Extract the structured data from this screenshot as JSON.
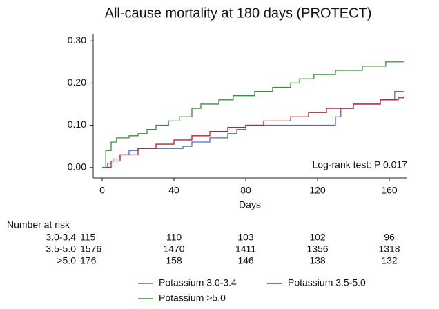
{
  "chart_data": {
    "type": "step",
    "title": "All-cause mortality at 180 days (PROTECT)",
    "x_label": "Days",
    "annotation": "Log-rank test: P 0.017",
    "xlim": [
      -5,
      170
    ],
    "ylim": [
      -0.025,
      0.315
    ],
    "xticks": [
      0,
      40,
      80,
      120,
      160
    ],
    "yticks": [
      {
        "value": 0.3,
        "label": "0.30"
      },
      {
        "value": 0.2,
        "label": "0.20"
      },
      {
        "value": 0.1,
        "label": "0.10"
      },
      {
        "value": 0,
        "label": "0.00"
      }
    ],
    "grid": false,
    "series": [
      {
        "name": "Potassium 3.0-3.4",
        "color": "#4a6fbf",
        "x": [
          0,
          3,
          6,
          10,
          15,
          20,
          45,
          50,
          60,
          70,
          75,
          80,
          130,
          133,
          140,
          155,
          163,
          168
        ],
        "values": [
          0,
          0.01,
          0.02,
          0.03,
          0.04,
          0.045,
          0.05,
          0.06,
          0.07,
          0.08,
          0.09,
          0.1,
          0.12,
          0.14,
          0.15,
          0.16,
          0.18,
          0.18
        ]
      },
      {
        "name": "Potassium 3.5-5.0",
        "color": "#b0243a",
        "x": [
          0,
          5,
          10,
          20,
          30,
          40,
          50,
          60,
          70,
          80,
          90,
          105,
          115,
          125,
          140,
          155,
          165,
          168
        ],
        "values": [
          0,
          0.015,
          0.03,
          0.045,
          0.055,
          0.065,
          0.075,
          0.085,
          0.095,
          0.1,
          0.11,
          0.12,
          0.13,
          0.14,
          0.15,
          0.16,
          0.165,
          0.168
        ]
      },
      {
        "name": "Potassium >5.0",
        "color": "#3d8b3d",
        "x": [
          0,
          2,
          5,
          8,
          15,
          20,
          25,
          30,
          37,
          43,
          50,
          55,
          65,
          73,
          85,
          95,
          105,
          110,
          118,
          130,
          145,
          158,
          168
        ],
        "values": [
          0,
          0.04,
          0.06,
          0.07,
          0.075,
          0.08,
          0.09,
          0.1,
          0.11,
          0.12,
          0.14,
          0.15,
          0.16,
          0.17,
          0.18,
          0.19,
          0.2,
          0.21,
          0.22,
          0.23,
          0.24,
          0.25,
          0.25
        ]
      }
    ],
    "risk_table": {
      "title": "Number at risk",
      "rows": [
        {
          "label": "3.0-3.4",
          "values": [
            115,
            110,
            103,
            102,
            96
          ]
        },
        {
          "label": "3.5-5.0",
          "values": [
            1576,
            1470,
            1411,
            1356,
            1318
          ]
        },
        {
          "label": ">5.0",
          "values": [
            176,
            158,
            146,
            138,
            132
          ]
        }
      ]
    }
  }
}
